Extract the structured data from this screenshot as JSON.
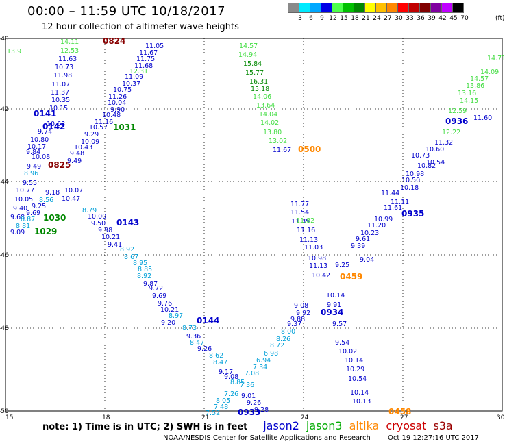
{
  "header": {
    "title": "00:00 – 11:59 UTC 10/18/2017",
    "subtitle": "12 hour collection of altimeter wave heights",
    "unit": "(ft)"
  },
  "color_scale": {
    "labels": [
      "3",
      "6",
      "9",
      "12",
      "15",
      "18",
      "21",
      "24",
      "27",
      "30",
      "33",
      "36",
      "39",
      "42",
      "45",
      "70"
    ],
    "colors": [
      "#8a8a8a",
      "#00eaff",
      "#00a8ff",
      "#0000e6",
      "#4cff4c",
      "#00c000",
      "#008800",
      "#ffff00",
      "#ffc000",
      "#ff8800",
      "#ff0000",
      "#c00000",
      "#800000",
      "#8000a0",
      "#c000ff",
      "#000000"
    ]
  },
  "map": {
    "lon_labels": [
      "15",
      "18",
      "21",
      "24",
      "27",
      "30"
    ],
    "lat_labels": [
      "-40",
      "-42",
      "-44",
      "-46",
      "-48",
      "-50"
    ]
  },
  "tracks": {
    "color_by_text": {
      "dark_blue": "#0000cc",
      "light_blue": "#00a0d8",
      "green": "#44dd44",
      "dark_green": "#008800",
      "orange": "#ff8800",
      "dark_red": "#880000"
    },
    "items": [
      {
        "text": "14.11",
        "c": "green"
      },
      {
        "text": "12.53",
        "c": "green"
      },
      {
        "text": "11.63",
        "c": "dark_blue"
      },
      {
        "text": "10.73",
        "c": "dark_blue"
      },
      {
        "text": "11.98",
        "c": "dark_blue"
      },
      {
        "text": "11.07",
        "c": "dark_blue"
      },
      {
        "text": "11.37",
        "c": "dark_blue"
      },
      {
        "text": "10.35",
        "c": "dark_blue"
      },
      {
        "text": "10.15",
        "c": "dark_blue"
      },
      {
        "text": "0141",
        "c": "dark_blue"
      },
      {
        "text": "10.63",
        "c": "dark_blue"
      },
      {
        "text": "0142",
        "c": "dark_blue"
      },
      {
        "text": "9.74",
        "c": "dark_blue"
      },
      {
        "text": "10.80",
        "c": "dark_blue"
      },
      {
        "text": "10.17",
        "c": "dark_blue"
      },
      {
        "text": "9.84",
        "c": "dark_blue"
      },
      {
        "text": "10.08",
        "c": "dark_blue"
      },
      {
        "text": "9.49",
        "c": "dark_blue"
      },
      {
        "text": "0825",
        "c": "dark_red"
      },
      {
        "text": "8.96",
        "c": "light_blue"
      },
      {
        "text": "9.55",
        "c": "dark_blue"
      },
      {
        "text": "10.77",
        "c": "dark_blue"
      },
      {
        "text": "10.05",
        "c": "dark_blue"
      },
      {
        "text": "9.40",
        "c": "dark_blue"
      },
      {
        "text": "9.68",
        "c": "dark_blue"
      },
      {
        "text": "8.81",
        "c": "light_blue"
      },
      {
        "text": "9.09",
        "c": "dark_blue"
      },
      {
        "text": "1030",
        "c": "dark_green"
      },
      {
        "text": "1029",
        "c": "dark_green"
      },
      {
        "text": "9.18",
        "c": "dark_blue"
      },
      {
        "text": "8.56",
        "c": "light_blue"
      },
      {
        "text": "9.25",
        "c": "dark_blue"
      },
      {
        "text": "9.69",
        "c": "dark_blue"
      },
      {
        "text": "8.87",
        "c": "light_blue"
      },
      {
        "text": "0824",
        "c": "dark_red"
      },
      {
        "text": "11.05",
        "c": "dark_blue"
      },
      {
        "text": "11.67",
        "c": "dark_blue"
      },
      {
        "text": "11.75",
        "c": "dark_blue"
      },
      {
        "text": "11.68",
        "c": "dark_blue"
      },
      {
        "text": "12.31",
        "c": "green"
      },
      {
        "text": "11.09",
        "c": "dark_blue"
      },
      {
        "text": "10.37",
        "c": "dark_blue"
      },
      {
        "text": "10.75",
        "c": "dark_blue"
      },
      {
        "text": "11.26",
        "c": "dark_blue"
      },
      {
        "text": "10.04",
        "c": "dark_blue"
      },
      {
        "text": "9.90",
        "c": "dark_blue"
      },
      {
        "text": "10.48",
        "c": "dark_blue"
      },
      {
        "text": "11.16",
        "c": "dark_blue"
      },
      {
        "text": "10.57",
        "c": "dark_blue"
      },
      {
        "text": "1031",
        "c": "dark_green"
      },
      {
        "text": "9.29",
        "c": "dark_blue"
      },
      {
        "text": "10.09",
        "c": "dark_blue"
      },
      {
        "text": "10.43",
        "c": "dark_blue"
      },
      {
        "text": "9.48",
        "c": "dark_blue"
      },
      {
        "text": "9.49",
        "c": "dark_blue"
      },
      {
        "text": "10.07",
        "c": "dark_blue"
      },
      {
        "text": "10.47",
        "c": "dark_blue"
      },
      {
        "text": "8.79",
        "c": "light_blue"
      },
      {
        "text": "10.00",
        "c": "dark_blue"
      },
      {
        "text": "9.50",
        "c": "dark_blue"
      },
      {
        "text": "9.98",
        "c": "dark_blue"
      },
      {
        "text": "10.21",
        "c": "dark_blue"
      },
      {
        "text": "0143",
        "c": "dark_blue"
      },
      {
        "text": "9.41",
        "c": "dark_blue"
      },
      {
        "text": "8.92",
        "c": "light_blue"
      },
      {
        "text": "8.67",
        "c": "light_blue"
      },
      {
        "text": "8.95",
        "c": "light_blue"
      },
      {
        "text": "8.85",
        "c": "light_blue"
      },
      {
        "text": "8.92",
        "c": "light_blue"
      },
      {
        "text": "9.87",
        "c": "dark_blue"
      },
      {
        "text": "9.72",
        "c": "dark_blue"
      },
      {
        "text": "9.69",
        "c": "dark_blue"
      },
      {
        "text": "9.76",
        "c": "dark_blue"
      },
      {
        "text": "10.21",
        "c": "dark_blue"
      },
      {
        "text": "8.97",
        "c": "light_blue"
      },
      {
        "text": "9.20",
        "c": "dark_blue"
      },
      {
        "text": "0144",
        "c": "dark_blue"
      },
      {
        "text": "8.73",
        "c": "light_blue"
      },
      {
        "text": "9.36",
        "c": "dark_blue"
      },
      {
        "text": "8.47",
        "c": "light_blue"
      },
      {
        "text": "9.26",
        "c": "dark_blue"
      },
      {
        "text": "8.62",
        "c": "light_blue"
      },
      {
        "text": "8.47",
        "c": "light_blue"
      },
      {
        "text": "9.17",
        "c": "dark_blue"
      },
      {
        "text": "9.08",
        "c": "dark_blue"
      },
      {
        "text": "8.85",
        "c": "light_blue"
      },
      {
        "text": "7.26",
        "c": "light_blue"
      },
      {
        "text": "8.05",
        "c": "light_blue"
      },
      {
        "text": "7.48",
        "c": "light_blue"
      },
      {
        "text": "7.52",
        "c": "light_blue"
      },
      {
        "text": "0933",
        "c": "dark_blue"
      },
      {
        "text": "9.01",
        "c": "dark_blue"
      },
      {
        "text": "9.26",
        "c": "dark_blue"
      },
      {
        "text": "9.28",
        "c": "dark_blue"
      },
      {
        "text": "7.36",
        "c": "light_blue"
      },
      {
        "text": "7.08",
        "c": "light_blue"
      },
      {
        "text": "7.34",
        "c": "light_blue"
      },
      {
        "text": "6.94",
        "c": "light_blue"
      },
      {
        "text": "6.98",
        "c": "light_blue"
      },
      {
        "text": "8.72",
        "c": "light_blue"
      },
      {
        "text": "8.26",
        "c": "light_blue"
      },
      {
        "text": "8.00",
        "c": "light_blue"
      },
      {
        "text": "9.37",
        "c": "dark_blue"
      },
      {
        "text": "9.88",
        "c": "dark_blue"
      },
      {
        "text": "9.92",
        "c": "dark_blue"
      },
      {
        "text": "9.08",
        "c": "dark_blue"
      },
      {
        "text": "14.57",
        "c": "green"
      },
      {
        "text": "14.94",
        "c": "green"
      },
      {
        "text": "15.84",
        "c": "dark_green"
      },
      {
        "text": "15.77",
        "c": "dark_green"
      },
      {
        "text": "16.31",
        "c": "dark_green"
      },
      {
        "text": "15.18",
        "c": "dark_green"
      },
      {
        "text": "14.06",
        "c": "green"
      },
      {
        "text": "13.64",
        "c": "green"
      },
      {
        "text": "14.04",
        "c": "green"
      },
      {
        "text": "14.02",
        "c": "green"
      },
      {
        "text": "13.80",
        "c": "green"
      },
      {
        "text": "13.02",
        "c": "green"
      },
      {
        "text": "11.67",
        "c": "dark_blue"
      },
      {
        "text": "0500",
        "c": "orange"
      },
      {
        "text": "11.77",
        "c": "dark_blue"
      },
      {
        "text": "11.54",
        "c": "dark_blue"
      },
      {
        "text": "11.35",
        "c": "dark_blue"
      },
      {
        "text": "11.82",
        "c": "green"
      },
      {
        "text": "11.16",
        "c": "dark_blue"
      },
      {
        "text": "11.13",
        "c": "dark_blue"
      },
      {
        "text": "11.03",
        "c": "dark_blue"
      },
      {
        "text": "10.98",
        "c": "dark_blue"
      },
      {
        "text": "11.13",
        "c": "dark_blue"
      },
      {
        "text": "10.42",
        "c": "dark_blue"
      },
      {
        "text": "0459",
        "c": "orange"
      },
      {
        "text": "10.14",
        "c": "dark_blue"
      },
      {
        "text": "9.91",
        "c": "dark_blue"
      },
      {
        "text": "0934",
        "c": "dark_blue"
      },
      {
        "text": "9.57",
        "c": "dark_blue"
      },
      {
        "text": "9.54",
        "c": "dark_blue"
      },
      {
        "text": "10.02",
        "c": "dark_blue"
      },
      {
        "text": "10.14",
        "c": "dark_blue"
      },
      {
        "text": "10.29",
        "c": "dark_blue"
      },
      {
        "text": "10.54",
        "c": "dark_blue"
      },
      {
        "text": "10.14",
        "c": "dark_blue"
      },
      {
        "text": "10.13",
        "c": "dark_blue"
      },
      {
        "text": "0458",
        "c": "orange"
      },
      {
        "text": "9.04",
        "c": "dark_blue"
      },
      {
        "text": "9.25",
        "c": "dark_blue"
      },
      {
        "text": "9.39",
        "c": "dark_blue"
      },
      {
        "text": "9.61",
        "c": "dark_blue"
      },
      {
        "text": "10.23",
        "c": "dark_blue"
      },
      {
        "text": "11.20",
        "c": "dark_blue"
      },
      {
        "text": "10.99",
        "c": "dark_blue"
      },
      {
        "text": "11.61",
        "c": "dark_blue"
      },
      {
        "text": "11.11",
        "c": "dark_blue"
      },
      {
        "text": "11.44",
        "c": "dark_blue"
      },
      {
        "text": "0935",
        "c": "dark_blue"
      },
      {
        "text": "10.50",
        "c": "dark_blue"
      },
      {
        "text": "10.18",
        "c": "dark_blue"
      },
      {
        "text": "10.98",
        "c": "dark_blue"
      },
      {
        "text": "10.82",
        "c": "dark_blue"
      },
      {
        "text": "10.73",
        "c": "dark_blue"
      },
      {
        "text": "10.54",
        "c": "dark_blue"
      },
      {
        "text": "10.60",
        "c": "dark_blue"
      },
      {
        "text": "11.32",
        "c": "dark_blue"
      },
      {
        "text": "11.60",
        "c": "dark_blue"
      },
      {
        "text": "0936",
        "c": "dark_blue"
      },
      {
        "text": "12.22",
        "c": "green"
      },
      {
        "text": "12.59",
        "c": "green"
      },
      {
        "text": "14.15",
        "c": "green"
      },
      {
        "text": "13.16",
        "c": "green"
      },
      {
        "text": "13.86",
        "c": "green"
      },
      {
        "text": "14.57",
        "c": "green"
      },
      {
        "text": "14.09",
        "c": "green"
      },
      {
        "text": "14.71",
        "c": "green"
      },
      {
        "text": "13.9",
        "c": "green"
      }
    ]
  },
  "legend": {
    "note": "note: 1) Time is in UTC; 2) SWH is in feet",
    "satellites": [
      {
        "name": "jason2",
        "color": "#0000cc"
      },
      {
        "name": "jason3",
        "color": "#00aa00"
      },
      {
        "name": "altika",
        "color": "#ff8800"
      },
      {
        "name": "cryosat",
        "color": "#cc0000"
      },
      {
        "name": "s3a",
        "color": "#990000"
      }
    ]
  },
  "footer": {
    "org": "NOAA/NESDIS Center for Satellite Applications and Research",
    "stamp": "Oct 19 12:27:16 UTC 2017"
  }
}
